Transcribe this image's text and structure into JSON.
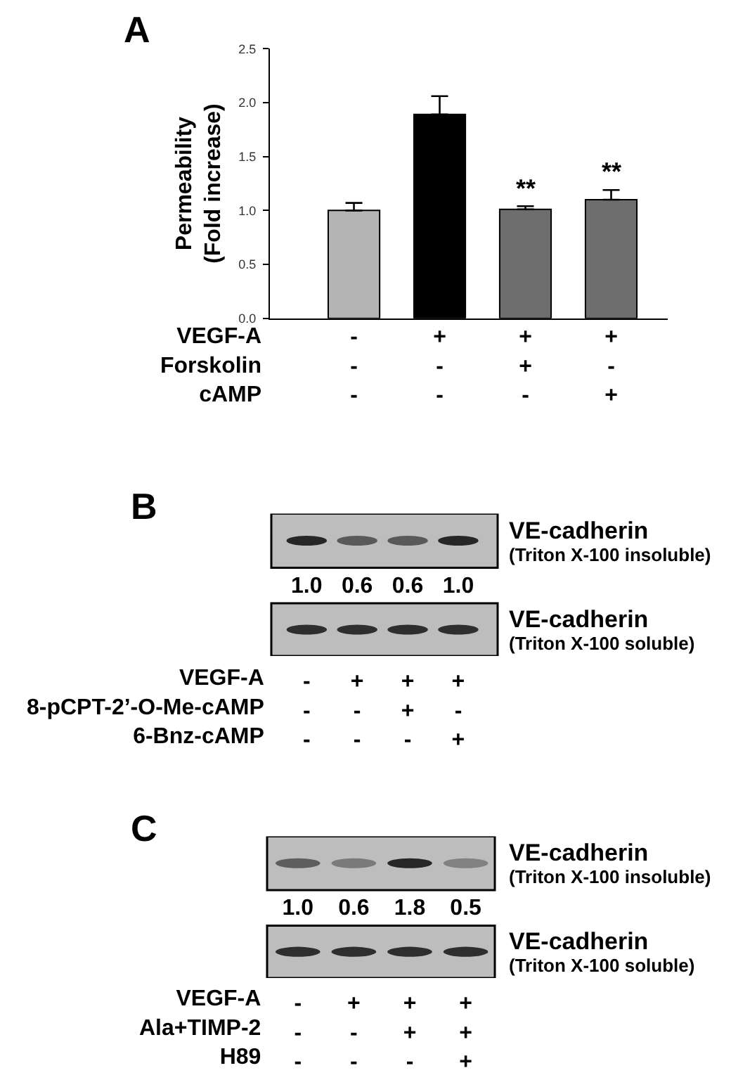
{
  "chart_data": [
    {
      "type": "bar",
      "title": "A",
      "ylabel": "Permeability\n(Fold increase)",
      "xlabel": "VEGF-A\nForskolin\ncAMP",
      "categories": [
        "-\n-\n-",
        "+\n-\n-",
        "+\n+\n-",
        "+\n-\n+"
      ],
      "values": [
        1.0,
        1.89,
        1.01,
        1.1
      ],
      "errors": [
        [
          1.0,
          1.07
        ],
        [
          1.89,
          2.06
        ],
        [
          1.01,
          1.04
        ],
        [
          1.1,
          1.19
        ]
      ],
      "colors": [
        "#b4b4b4",
        "#000000",
        "#6e6e6e",
        "#6e6e6e"
      ],
      "ylim": [
        0,
        2.5
      ],
      "yticks": [
        {
          "value": 0,
          "label": "0.0"
        },
        0.5,
        {
          "value": 1,
          "label": "1.0"
        },
        1.5,
        {
          "value": 2,
          "label": "2.0"
        },
        2.5
      ],
      "annotations": [
        {
          "text": "**",
          "x": "+\n+\n-",
          "y": 1.04
        },
        {
          "text": "**",
          "x": "+\n-\n+",
          "y": 1.19
        }
      ]
    },
    {
      "type": "other",
      "title": "B",
      "categories": [
        "-\n-\n-",
        "+\n-\n-",
        "+\n+\n-",
        "+\n-\n+"
      ],
      "xlabel": "VEGF-A\n8-pCPT-2’-O-Me-cAMP\n6-Bnz-cAMP",
      "values": [
        1.0,
        0.6,
        0.6,
        1.0
      ],
      "value_labels": [
        "1.0",
        "0.6",
        "0.6",
        "1.0"
      ],
      "annotations": [
        "VE-cadherin",
        "(Triton X-100 insoluble)",
        "VE-cadherin",
        "(Triton X-100 soluble)"
      ]
    },
    {
      "type": "other",
      "title": "C",
      "categories": [
        "-\n-\n-",
        "+\n-\n-",
        "+\n+\n-",
        "+\n+\n+"
      ],
      "xlabel": "VEGF-A\nAla+TIMP-2\nH89",
      "values": [
        1.0,
        0.6,
        1.8,
        0.5
      ],
      "value_labels": [
        "1.0",
        "0.6",
        "1.8",
        "0.5"
      ],
      "annotations": [
        "VE-cadherin",
        "(Triton X-100 insoluble)",
        "VE-cadherin",
        "(Triton X-100 soluble)"
      ]
    }
  ]
}
